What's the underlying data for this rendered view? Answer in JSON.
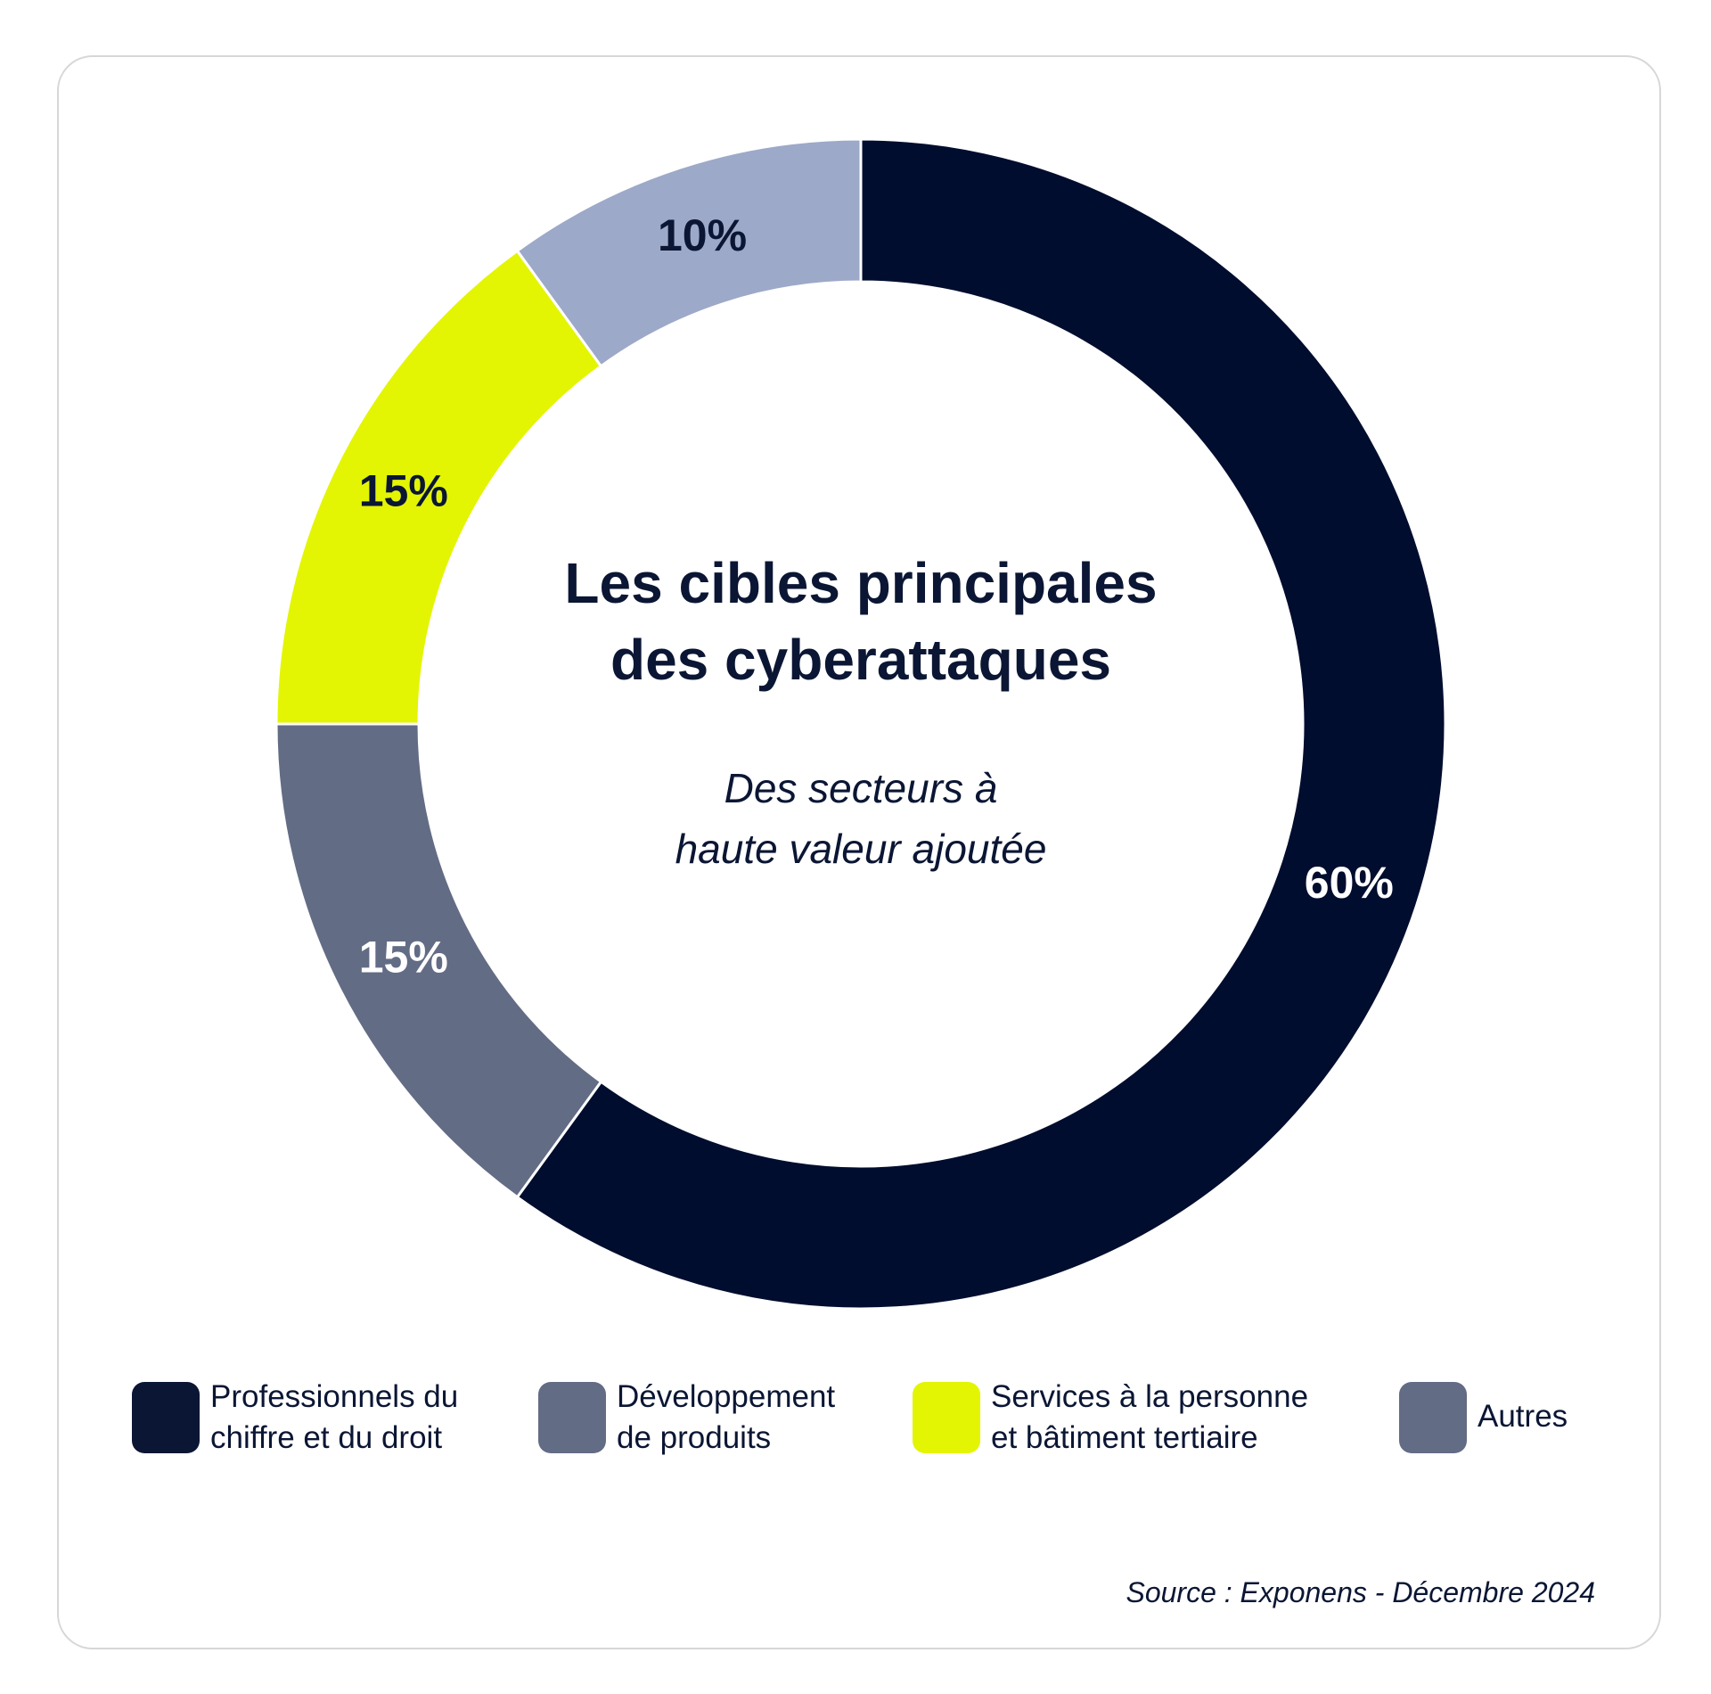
{
  "chart_data": {
    "type": "pie",
    "donut": true,
    "title_lines": [
      "Les cibles principales",
      "des cyberattaques"
    ],
    "subtitle_lines": [
      "Des secteurs à",
      "haute valeur ajoutée"
    ],
    "slices": [
      {
        "name": "Professionnels du chiffre et du droit",
        "value": 60,
        "label": "60%",
        "color": "#000d2e",
        "label_color": "#ffffff"
      },
      {
        "name": "Développement de produits",
        "value": 15,
        "label": "15%",
        "color": "#636c85",
        "label_color": "#ffffff"
      },
      {
        "name": "Services à la personne et bâtiment tertiaire",
        "value": 15,
        "label": "15%",
        "color": "#e3f503",
        "label_color": "#0b1634"
      },
      {
        "name": "Autres",
        "value": 10,
        "label": "10%",
        "color": "#9da9c8",
        "label_color": "#0b1634"
      }
    ],
    "legend_position": "bottom",
    "legend": [
      {
        "lines": [
          "Professionnels du",
          "chiffre et du droit"
        ],
        "color": "#0b1634"
      },
      {
        "lines": [
          "Développement",
          "de produits"
        ],
        "color": "#636c85"
      },
      {
        "lines": [
          "Services à la personne",
          "et bâtiment tertiaire"
        ],
        "color": "#e3f503"
      },
      {
        "lines": [
          "Autres"
        ],
        "color": "#636c85"
      }
    ],
    "source": "Source : Exponens - Décembre 2024"
  }
}
